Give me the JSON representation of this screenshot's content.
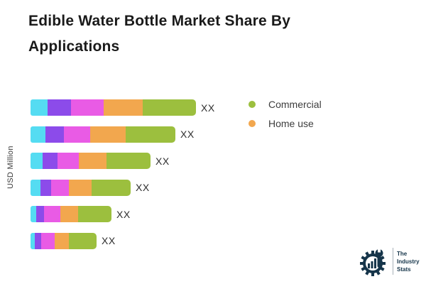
{
  "header": {
    "title": "Edible Water Bottle Market Share By Applications"
  },
  "chart_data": {
    "type": "bar",
    "orientation": "horizontal",
    "stacked": true,
    "title": "Edible Water Bottle Market Share By Applications",
    "xlabel": "",
    "ylabel": "USD Million",
    "grid": false,
    "legend_position": "upper-right",
    "legend": [
      {
        "label": "Commercial",
        "color": "#9CBF3E"
      },
      {
        "label": "Home use",
        "color": "#F2A74E"
      }
    ],
    "categories": [
      "",
      "",
      "",
      "",
      "",
      ""
    ],
    "series": [
      {
        "name": "segment-cyan",
        "color": "#55DCF2",
        "values": [
          24,
          21,
          17,
          14,
          8,
          6
        ]
      },
      {
        "name": "segment-purple",
        "color": "#8C4BEA",
        "values": [
          33,
          26,
          21,
          15,
          11,
          9
        ]
      },
      {
        "name": "segment-magenta",
        "color": "#E95BE5",
        "values": [
          46,
          37,
          30,
          25,
          23,
          19
        ]
      },
      {
        "name": "Home use",
        "color": "#F2A74E",
        "values": [
          55,
          50,
          39,
          32,
          25,
          20
        ]
      },
      {
        "name": "Commercial",
        "color": "#9CBF3E",
        "values": [
          75,
          70,
          62,
          55,
          47,
          39
        ]
      }
    ],
    "bar_value_labels": [
      "XX",
      "XX",
      "XX",
      "XX",
      "XX",
      "XX"
    ]
  },
  "logo": {
    "lines": [
      "The",
      "Industry",
      "Stats"
    ],
    "color": "#16354A"
  }
}
